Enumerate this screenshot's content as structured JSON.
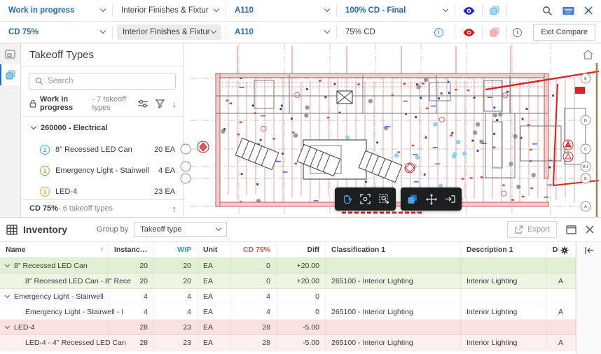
{
  "compare_bar": {
    "primary": {
      "version": "Work in progress",
      "package": "Interior Finishes & Fixtur",
      "sheet": "A110",
      "milestone": "100% CD - Final"
    },
    "secondary": {
      "version": "CD 75%",
      "package": "Interior Finishes & Fixtur",
      "sheet": "A110",
      "milestone": "75% CD",
      "exit_button": "Exit Compare",
      "info_glyph": "i"
    },
    "colors": {
      "accent_blue": "#1f6db6",
      "primary_overlay": "#2525cc",
      "secondary_overlay": "#e01212"
    }
  },
  "takeoff_panel": {
    "title": "Takeoff Types",
    "search_placeholder": "Search",
    "scope_bold": "Work in progress",
    "scope_rest": " - 7 takeoff types",
    "group_label": "260000 - Electrical",
    "items": [
      {
        "badge": "1",
        "color": "#2bb8c4",
        "name": "8\" Recessed LED Can",
        "qty": "20 EA"
      },
      {
        "badge": "1",
        "color": "#87b340",
        "name": "Emergency Light - Stairwell",
        "qty": "4 EA"
      },
      {
        "badge": "1",
        "color": "#f2a72e",
        "name": "LED-4",
        "qty": "23 EA"
      }
    ],
    "footer_bold": "CD 75%",
    "footer_rest": " - 6 takeoff types",
    "footer_arrow": "↑"
  },
  "canvas": {
    "grid_labels": [
      "E",
      "D",
      "C",
      "B.1",
      "B",
      "A"
    ]
  },
  "inventory": {
    "title": "Inventory",
    "group_by_label": "Group by",
    "group_by_value": "Takeoff type",
    "export_label": "Export",
    "headers": {
      "name": "Name",
      "sort_arrow": "↑",
      "instances": "Instanc…",
      "wip": "WIP",
      "unit": "Unit",
      "cd75": "CD 75%",
      "diff": "Diff",
      "classification": "Classification 1",
      "description": "Description 1",
      "d": "D"
    },
    "rows": [
      {
        "name": "8\" Recessed LED Can",
        "instances": "20",
        "wip": "20",
        "unit": "EA",
        "cd75": "0",
        "diff": "+20.00",
        "classification": "",
        "description": "",
        "d": ""
      },
      {
        "name": "8\" Recessed LED Can - 8\" Rece",
        "instances": "20",
        "wip": "20",
        "unit": "EA",
        "cd75": "0",
        "diff": "+20.00",
        "classification": "265100 - Interior Lighting",
        "description": "Interior Lighting",
        "d": "A"
      },
      {
        "name": "Emergency Light - Stairwell",
        "instances": "4",
        "wip": "4",
        "unit": "EA",
        "cd75": "4",
        "diff": "0",
        "classification": "",
        "description": "",
        "d": ""
      },
      {
        "name": "Emergency Light - Stairwell - I",
        "instances": "4",
        "wip": "4",
        "unit": "EA",
        "cd75": "4",
        "diff": "0",
        "classification": "265100 - Interior Lighting",
        "description": "Interior Lighting",
        "d": "A"
      },
      {
        "name": "LED-4",
        "instances": "28",
        "wip": "23",
        "unit": "EA",
        "cd75": "28",
        "diff": "-5.00",
        "classification": "",
        "description": "",
        "d": ""
      },
      {
        "name": "LED-4 - 4\" Recessed LED Can",
        "instances": "28",
        "wip": "23",
        "unit": "EA",
        "cd75": "28",
        "diff": "-5.00",
        "classification": "265100 - Interior Lighting",
        "description": "Interior Lighting",
        "d": "A"
      }
    ]
  }
}
